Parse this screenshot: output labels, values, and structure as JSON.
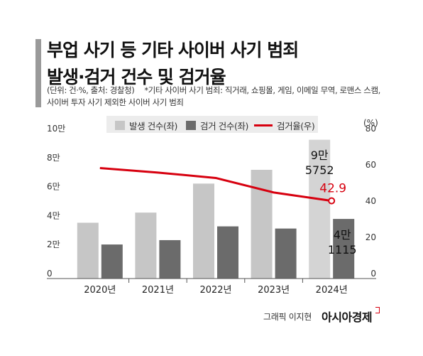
{
  "title_lines": [
    "부업 사기 등 기타 사이버 사기 범죄",
    "발생·검거 건수 및 검거율"
  ],
  "note": {
    "unit_source": "(단위: 건·%, 출처: 경찰청)",
    "footnote_line1": "*기타 사이버 사기 범죄: 직거래, 쇼핑몰, 게임, 이메일 무역, 로맨스 스캠,",
    "footnote_line2": "사이버 투자 사기 제외한 사이버 사기 범죄"
  },
  "legend": {
    "occurrences": "발생 건수(좌)",
    "arrests": "검거 건수(좌)",
    "rate": "검거율(우)"
  },
  "colors": {
    "occurrences": "#c6c6c6",
    "arrests": "#6b6b6b",
    "rate": "#d7000f",
    "highlight_bar": "#d4d4d4"
  },
  "credit": {
    "text": "그래픽 이지현",
    "brand": "아시아경제"
  },
  "chart_data": {
    "type": "bar",
    "categories": [
      "2020년",
      "2021년",
      "2022년",
      "2023년",
      "2024년"
    ],
    "series": [
      {
        "name": "발생 건수(좌)",
        "type": "bar",
        "axis": "left",
        "values": [
          38500,
          45500,
          65500,
          75000,
          95752
        ]
      },
      {
        "name": "검거 건수(좌)",
        "type": "bar",
        "axis": "left",
        "values": [
          23500,
          26500,
          36000,
          34500,
          41115
        ]
      },
      {
        "name": "검거율(우)",
        "type": "line",
        "axis": "right",
        "values": [
          61,
          58.5,
          55.5,
          47.5,
          42.9
        ]
      }
    ],
    "left_axis": {
      "unit": "",
      "ticks": [
        0,
        20000,
        40000,
        60000,
        80000,
        100000
      ],
      "tick_labels": [
        "0",
        "2만",
        "4만",
        "6만",
        "8만",
        "10만"
      ],
      "ylim": [
        0,
        100000
      ]
    },
    "right_axis": {
      "unit": "(%)",
      "ticks": [
        0,
        20,
        40,
        60,
        80
      ],
      "tick_labels": [
        "0",
        "20",
        "40",
        "60",
        "80"
      ],
      "ylim": [
        0,
        80
      ]
    },
    "annotations": [
      {
        "series": "발생 건수(좌)",
        "category": "2024년",
        "lines": [
          "9만",
          "5752"
        ]
      },
      {
        "series": "검거 건수(좌)",
        "category": "2024년",
        "lines": [
          "4만",
          "1115"
        ]
      },
      {
        "series": "검거율(우)",
        "category": "2024년",
        "lines": [
          "42.9"
        ]
      }
    ],
    "grid": false,
    "legend_position": "top"
  }
}
